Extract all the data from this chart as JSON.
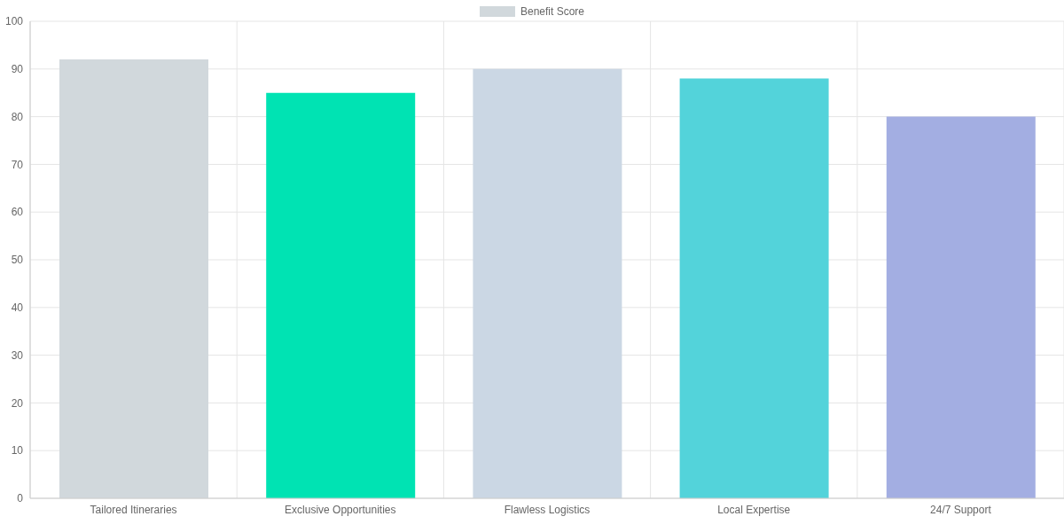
{
  "chart_data": {
    "type": "bar",
    "categories": [
      "Tailored Itineraries",
      "Exclusive Opportunities",
      "Flawless Logistics",
      "Local Expertise",
      "24/7 Support"
    ],
    "series": [
      {
        "name": "Benefit Score",
        "values": [
          92,
          85,
          90,
          88,
          80
        ],
        "colors": [
          "#d1d8dc",
          "#00e3b3",
          "#cbd7e4",
          "#53d3da",
          "#a3aee2"
        ]
      }
    ],
    "ylim": [
      0,
      100
    ],
    "yticks": [
      0,
      10,
      20,
      30,
      40,
      50,
      60,
      70,
      80,
      90,
      100
    ],
    "grid": true,
    "legend": "top"
  }
}
